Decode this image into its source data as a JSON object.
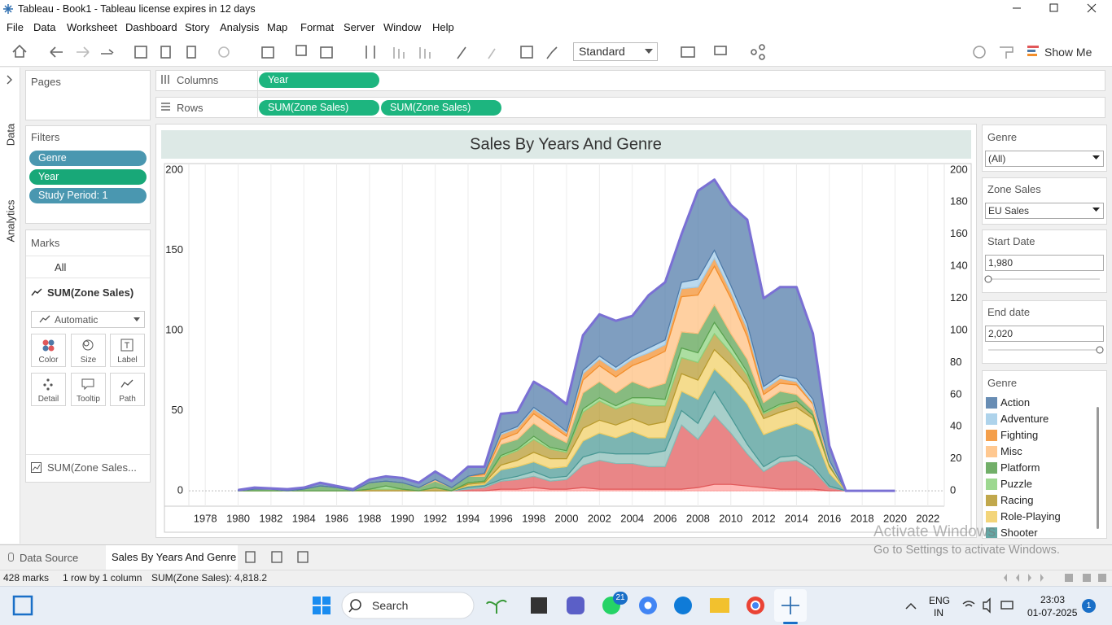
{
  "window": {
    "title": "Tableau - Book1 - Tableau license expires in 12 days"
  },
  "menu": [
    "File",
    "Data",
    "Worksheet",
    "Dashboard",
    "Story",
    "Analysis",
    "Map",
    "Format",
    "Server",
    "Window",
    "Help"
  ],
  "toolbar": {
    "fit": "Standard",
    "show_me": "Show Me"
  },
  "side_tabs": [
    "Data",
    "Analytics"
  ],
  "pages": {
    "title": "Pages"
  },
  "filters": {
    "title": "Filters",
    "pills": [
      "Genre",
      "Year",
      "Study Period: 1"
    ]
  },
  "marks": {
    "title": "Marks",
    "all": "All",
    "measure": "SUM(Zone Sales)",
    "mark_type": "Automatic",
    "buttons": [
      "Color",
      "Size",
      "Label",
      "Detail",
      "Tooltip",
      "Path"
    ],
    "field": "SUM(Zone Sales..."
  },
  "shelves": {
    "columns": {
      "label": "Columns",
      "pills": [
        "Year"
      ]
    },
    "rows": {
      "label": "Rows",
      "pills": [
        "SUM(Zone Sales)",
        "SUM(Zone Sales)"
      ]
    }
  },
  "chart_data": {
    "type": "area",
    "title": "Sales By Years And Genre",
    "stacked": true,
    "grid": true,
    "x": [
      1980,
      1981,
      1982,
      1983,
      1984,
      1985,
      1986,
      1987,
      1988,
      1989,
      1990,
      1991,
      1992,
      1993,
      1994,
      1995,
      1996,
      1997,
      1998,
      1999,
      2000,
      2001,
      2002,
      2003,
      2004,
      2005,
      2006,
      2007,
      2008,
      2009,
      2010,
      2011,
      2012,
      2013,
      2014,
      2015,
      2016,
      2017,
      2018,
      2019,
      2020
    ],
    "xlim": [
      1977,
      2023
    ],
    "xticks": [
      1978,
      1980,
      1982,
      1984,
      1986,
      1988,
      1990,
      1992,
      1994,
      1996,
      1998,
      2000,
      2002,
      2004,
      2006,
      2008,
      2010,
      2012,
      2014,
      2016,
      2018,
      2020,
      2022
    ],
    "ylim": [
      -9.6,
      204
    ],
    "yticks": [
      0,
      50,
      100,
      150,
      200
    ],
    "y2lim": [
      -9.6,
      204
    ],
    "y2ticks": [
      0,
      20,
      40,
      60,
      80,
      100,
      120,
      140,
      160,
      180,
      200
    ],
    "series": [
      {
        "name": "Action",
        "type": "area",
        "color": "#4e79a7",
        "values": [
          0.5,
          1,
          0.5,
          1,
          1,
          2,
          1,
          1,
          2,
          3,
          3,
          3,
          5,
          4,
          6,
          4,
          12,
          9,
          16,
          17,
          17,
          22,
          26,
          29,
          25,
          33,
          36,
          30,
          55,
          44,
          50,
          65,
          55,
          55,
          57,
          41,
          9,
          0,
          null,
          null,
          null
        ]
      },
      {
        "name": "Adventure",
        "type": "area",
        "color": "#a0cbe8",
        "values": [
          0,
          0,
          0,
          0,
          0,
          0,
          0,
          0,
          0,
          0,
          0,
          0,
          0,
          0,
          0,
          0,
          1,
          1,
          1,
          1,
          1,
          2,
          2,
          2,
          2,
          3,
          3,
          4,
          5,
          5,
          4,
          3,
          2,
          2,
          2,
          2,
          1,
          0,
          null,
          null,
          null
        ]
      },
      {
        "name": "Fighting",
        "type": "area",
        "color": "#f28e2b",
        "values": [
          0,
          0,
          0,
          0,
          0,
          0,
          0,
          0,
          0,
          0,
          0,
          0,
          0,
          0,
          0,
          1,
          3,
          3,
          3,
          3,
          2,
          4,
          4,
          4,
          4,
          4,
          4,
          5,
          5,
          5,
          4,
          5,
          3,
          3,
          2,
          1,
          0,
          0,
          null,
          null,
          null
        ]
      },
      {
        "name": "Misc",
        "type": "area",
        "color": "#ffbe7d",
        "values": [
          0,
          0,
          0,
          0,
          0,
          0,
          0,
          0,
          0,
          0,
          0,
          0,
          1,
          0,
          0,
          1,
          3,
          4,
          6,
          6,
          4,
          8,
          10,
          10,
          10,
          18,
          20,
          22,
          24,
          24,
          22,
          14,
          5,
          5,
          6,
          4,
          1,
          0,
          null,
          null,
          null
        ]
      },
      {
        "name": "Platform",
        "type": "area",
        "color": "#59a14f",
        "values": [
          0,
          1,
          1,
          0,
          1,
          3,
          2,
          0,
          4,
          3,
          4,
          2,
          4,
          2,
          4,
          3,
          7,
          6,
          8,
          8,
          5,
          10,
          10,
          8,
          10,
          6,
          10,
          10,
          12,
          11,
          8,
          8,
          6,
          8,
          4,
          3,
          1,
          0,
          null,
          null,
          null
        ]
      },
      {
        "name": "Puzzle",
        "type": "area",
        "color": "#8cd17d",
        "values": [
          0,
          0,
          0,
          0,
          0,
          0,
          0,
          0,
          0,
          2,
          0,
          0,
          0,
          0,
          0,
          0,
          1,
          1,
          2,
          1,
          1,
          2,
          2,
          2,
          3,
          5,
          4,
          6,
          6,
          7,
          4,
          2,
          1,
          1,
          0,
          0,
          0,
          0,
          null,
          null,
          null
        ]
      },
      {
        "name": "Racing",
        "type": "area",
        "color": "#b6992d",
        "values": [
          0,
          0,
          0,
          0,
          0,
          0,
          0,
          0,
          1,
          1,
          1,
          0,
          2,
          0,
          1,
          1,
          5,
          6,
          8,
          6,
          4,
          10,
          12,
          10,
          10,
          12,
          10,
          10,
          11,
          10,
          8,
          6,
          3,
          4,
          4,
          2,
          1,
          0,
          null,
          null,
          null
        ]
      },
      {
        "name": "Role-Playing",
        "type": "area",
        "color": "#f1ce63",
        "values": [
          0,
          0,
          0,
          0,
          0,
          0,
          0,
          0,
          0,
          0,
          0,
          0,
          0,
          0,
          1,
          1,
          3,
          4,
          6,
          6,
          5,
          8,
          8,
          8,
          8,
          8,
          10,
          11,
          12,
          12,
          12,
          12,
          10,
          10,
          10,
          8,
          4,
          0,
          null,
          null,
          null
        ]
      },
      {
        "name": "Shooter",
        "type": "area",
        "color": "#499894",
        "values": [
          0,
          0,
          0,
          0,
          0,
          0,
          0,
          0,
          0,
          0,
          0,
          0,
          0,
          0,
          1,
          1,
          6,
          6,
          6,
          6,
          6,
          10,
          12,
          10,
          14,
          10,
          8,
          12,
          15,
          14,
          20,
          25,
          20,
          18,
          20,
          22,
          8,
          0,
          null,
          null,
          null
        ]
      },
      {
        "type": "area",
        "color": "#86bcb6",
        "values": [
          0,
          0,
          0,
          0,
          0,
          0,
          0,
          0,
          0,
          0,
          0,
          0,
          0,
          0,
          1,
          1,
          1,
          2,
          3,
          2,
          2,
          5,
          5,
          6,
          6,
          8,
          10,
          9,
          10,
          15,
          10,
          6,
          3,
          3,
          3,
          2,
          1,
          0,
          null,
          null,
          null
        ]
      },
      {
        "type": "area",
        "color": "#e15759",
        "values": [
          0,
          0,
          0,
          0,
          0,
          0,
          0,
          0,
          0,
          0,
          0,
          0,
          0,
          0,
          1,
          2,
          5,
          6,
          7,
          5,
          6,
          14,
          18,
          16,
          16,
          14,
          14,
          40,
          30,
          43,
          32,
          20,
          10,
          17,
          18,
          12,
          2,
          0,
          null,
          null,
          null
        ]
      },
      {
        "type": "area",
        "color": "#ff9d9a",
        "values": [
          0,
          0,
          0,
          0,
          0,
          0,
          0,
          0,
          0,
          0,
          0,
          0,
          0,
          0,
          0,
          0,
          1,
          1,
          2,
          1,
          1,
          2,
          1,
          1,
          1,
          1,
          1,
          1,
          2,
          4,
          4,
          3,
          2,
          1,
          1,
          1,
          0,
          0,
          null,
          null,
          null
        ]
      },
      {
        "type": "line",
        "axis": "y2",
        "color": "#7a70d4",
        "values": [
          0.5,
          2,
          1.5,
          1,
          2,
          5,
          3,
          1,
          7,
          9,
          8,
          5,
          12,
          6,
          15,
          15,
          48,
          49,
          68,
          62,
          54,
          97,
          110,
          106,
          109,
          122,
          130,
          160,
          187,
          194,
          178,
          169,
          120,
          127,
          127,
          98,
          28,
          0,
          0,
          0,
          0
        ]
      }
    ]
  },
  "controls": {
    "genre_filter": {
      "title": "Genre",
      "value": "(All)"
    },
    "zone_sales": {
      "title": "Zone Sales",
      "value": "EU Sales"
    },
    "start_date": {
      "title": "Start Date",
      "value": "1,980"
    },
    "end_date": {
      "title": "End date",
      "value": "2,020"
    },
    "legend_title": "Genre"
  },
  "sheet_tabs": [
    "Data Source",
    "Sales By Years And Genre"
  ],
  "status": [
    "428 marks",
    "1 row by 1 column",
    "SUM(Zone Sales): 4,818.2"
  ],
  "watermark": [
    "Activate Windows",
    "Go to Settings to activate Windows."
  ],
  "taskbar": {
    "search": "Search",
    "badge": "21",
    "lang": [
      "ENG",
      "IN"
    ],
    "time": "23:03",
    "date": "01-07-2025",
    "notifications": "1"
  }
}
